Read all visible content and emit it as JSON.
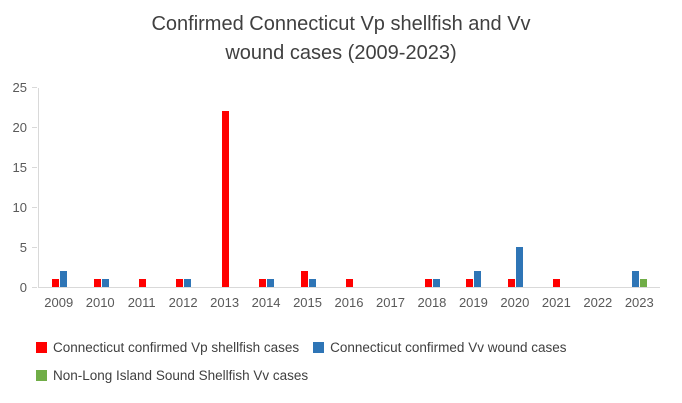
{
  "chart_data": {
    "type": "bar",
    "title": "Confirmed Connecticut Vp shellfish and Vv wound cases (2009-2023)",
    "title_lines": [
      "Confirmed Connecticut Vp shellfish and Vv",
      "wound cases (2009-2023)"
    ],
    "categories": [
      "2009",
      "2010",
      "2011",
      "2012",
      "2013",
      "2014",
      "2015",
      "2016",
      "2017",
      "2018",
      "2019",
      "2020",
      "2021",
      "2022",
      "2023"
    ],
    "series": [
      {
        "name": "Connecticut confirmed Vp shellfish cases",
        "key": "vp-shellfish",
        "color": "#FF0000",
        "values": [
          1,
          1,
          1,
          1,
          22,
          1,
          2,
          1,
          0,
          1,
          1,
          1,
          1,
          0,
          0
        ]
      },
      {
        "name": "Connecticut confirmed Vv wound cases",
        "key": "vv-wound",
        "color": "#2E75B6",
        "values": [
          2,
          1,
          0,
          1,
          0,
          1,
          1,
          0,
          0,
          1,
          2,
          5,
          0,
          0,
          2
        ]
      },
      {
        "name": "Non-Long Island Sound Shellfish Vv cases",
        "key": "non-lis-vv",
        "color": "#70AD47",
        "values": [
          0,
          0,
          0,
          0,
          0,
          0,
          0,
          0,
          0,
          0,
          0,
          0,
          0,
          0,
          1
        ]
      }
    ],
    "xlabel": "",
    "ylabel": "",
    "ylim": [
      0,
      25
    ],
    "yticks": [
      0,
      5,
      10,
      15,
      20,
      25
    ],
    "grid": false,
    "legend_position": "bottom"
  }
}
